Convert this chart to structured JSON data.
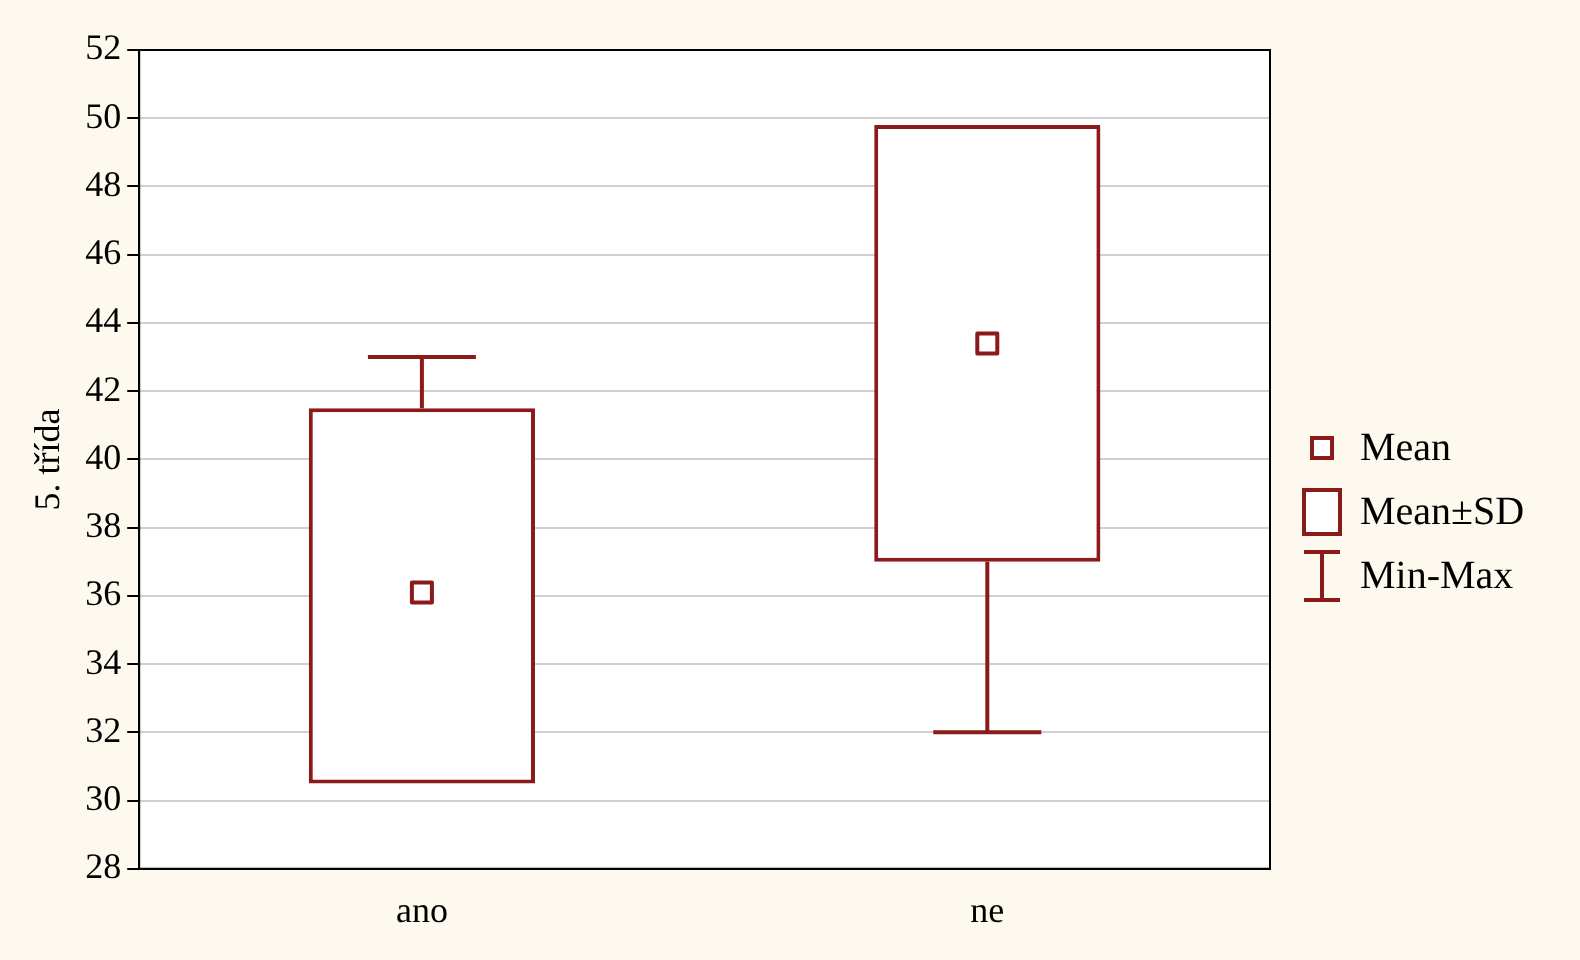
{
  "chart_data": {
    "type": "box",
    "ylabel": "5. třída",
    "categories": [
      "ano",
      "ne"
    ],
    "color": "#8b1a1a",
    "boxes": [
      {
        "low": 30.5,
        "q1": 30.5,
        "mean": 36.1,
        "q3": 41.5,
        "high": 43
      },
      {
        "low": 32,
        "q1": 37,
        "mean": 43.4,
        "q3": 49.8,
        "high": 49.8
      }
    ],
    "ylim": [
      28,
      52
    ],
    "yticks": [
      28,
      30,
      32,
      34,
      36,
      38,
      40,
      42,
      44,
      46,
      48,
      50,
      52
    ],
    "grid": "y",
    "annotations": [
      "Mean",
      "Mean±SD",
      "Min-Max"
    ]
  }
}
